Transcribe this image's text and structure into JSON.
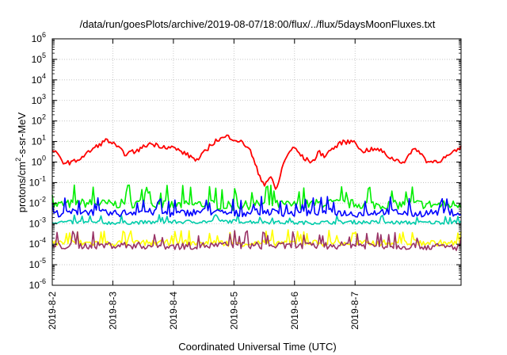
{
  "chart_data": {
    "type": "line",
    "title": "/data/run/goesPlots/archive/2019-08-07/18:00/flux/../flux/5daysMoonFluxes.txt",
    "xlabel": "Coordinated Universal Time (UTC)",
    "ylabel": {
      "prefix": "protons/cm",
      "sup": "2",
      "suffix": "-s-sr-MeV"
    },
    "yscale": "log",
    "ylim": [
      -6,
      6
    ],
    "y_ticks": [
      {
        "exp": -6,
        "base": "10",
        "sup": "-6"
      },
      {
        "exp": -5,
        "base": "10",
        "sup": "-5"
      },
      {
        "exp": -4,
        "base": "10",
        "sup": "-4"
      },
      {
        "exp": -3,
        "base": "10",
        "sup": "-3"
      },
      {
        "exp": -2,
        "base": "10",
        "sup": "-2"
      },
      {
        "exp": -1,
        "base": "10",
        "sup": "-1"
      },
      {
        "exp": 0,
        "base": "10",
        "sup": "0"
      },
      {
        "exp": 1,
        "base": "10",
        "sup": "1"
      },
      {
        "exp": 2,
        "base": "10",
        "sup": "2"
      },
      {
        "exp": 3,
        "base": "10",
        "sup": "3"
      },
      {
        "exp": 4,
        "base": "10",
        "sup": "4"
      },
      {
        "exp": 5,
        "base": "10",
        "sup": "5"
      },
      {
        "exp": 6,
        "base": "10",
        "sup": "6"
      }
    ],
    "x_ticks": [
      "2019-8-2",
      "2019-8-3",
      "2019-8-4",
      "2019-8-5",
      "2019-8-6",
      "2019-8-7"
    ],
    "xlim_days": [
      0,
      6.75
    ],
    "grid": true,
    "series": [
      {
        "color": "#ff0000",
        "x": [
          0,
          0.1,
          0.2,
          0.35,
          0.5,
          0.7,
          0.9,
          1.0,
          1.2,
          1.4,
          1.6,
          1.8,
          2.0,
          2.2,
          2.4,
          2.6,
          2.7,
          2.9,
          3.1,
          3.25,
          3.4,
          3.5,
          3.6,
          3.7,
          3.8,
          3.9,
          4.0,
          4.15,
          4.3,
          4.4,
          4.5,
          4.6,
          4.7,
          4.8,
          4.9,
          5.0,
          5.1,
          5.2,
          5.4,
          5.6,
          5.8,
          6.0,
          6.2,
          6.4,
          6.6,
          6.75
        ],
        "y": [
          4,
          2,
          0.9,
          1.0,
          1.8,
          5,
          12,
          8,
          2.5,
          3.5,
          8,
          6,
          5,
          2.5,
          1.2,
          6,
          11,
          18,
          10,
          5,
          0.3,
          0.08,
          0.2,
          0.04,
          0.6,
          3,
          5,
          1.5,
          1.0,
          3,
          2,
          4,
          6,
          10,
          9,
          12,
          3,
          4,
          4,
          1.5,
          1.0,
          5,
          1.0,
          1.2,
          2.5,
          5
        ]
      },
      {
        "color": "#00ee00",
        "x": [
          0,
          0.5,
          1.0,
          1.5,
          2.0,
          2.5,
          3.0,
          3.5,
          4.0,
          4.5,
          5.0,
          5.5,
          6.0,
          6.5,
          6.75
        ],
        "y": [
          0.008,
          0.01,
          0.009,
          0.01,
          0.008,
          0.009,
          0.007,
          0.009,
          0.008,
          0.01,
          0.009,
          0.008,
          0.009,
          0.008,
          0.009
        ]
      },
      {
        "color": "#00ccaa",
        "x": [
          0,
          1,
          2,
          3,
          4,
          5,
          6,
          6.75
        ],
        "y": [
          0.0012,
          0.0011,
          0.0012,
          0.0013,
          0.0011,
          0.0012,
          0.0011,
          0.0012
        ]
      },
      {
        "color": "#0000ff",
        "x": [
          0,
          0.5,
          1.0,
          1.5,
          2.0,
          2.5,
          3.0,
          3.5,
          4.0,
          4.5,
          5.0,
          5.5,
          6.0,
          6.5,
          6.75
        ],
        "y": [
          0.003,
          0.004,
          0.003,
          0.004,
          0.003,
          0.004,
          0.003,
          0.004,
          0.003,
          0.004,
          0.003,
          0.004,
          0.003,
          0.004,
          0.003
        ]
      },
      {
        "color": "#ffff00",
        "x": [
          0,
          1,
          2,
          3,
          4,
          5,
          6,
          6.75
        ],
        "y": [
          0.00012,
          0.00011,
          0.00012,
          0.00011,
          0.00012,
          0.00011,
          0.00012,
          0.00011
        ]
      },
      {
        "color": "#993366",
        "x": [
          0,
          1,
          2,
          3,
          4,
          5,
          6,
          6.75
        ],
        "y": [
          8e-05,
          9e-05,
          8e-05,
          9e-05,
          8e-05,
          9e-05,
          8e-05,
          7e-05
        ]
      }
    ]
  }
}
